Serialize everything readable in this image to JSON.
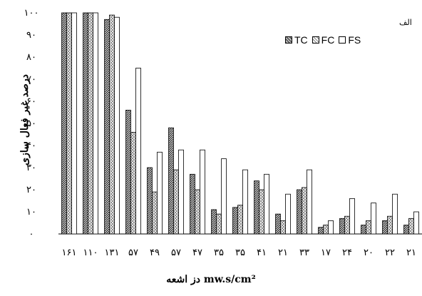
{
  "chart_data": {
    "type": "bar",
    "panel_tag": "الف",
    "xlabel": "دز اشعه mw.s/cm²",
    "ylabel": "درصد غیر فعال سازی",
    "ylim": [
      0,
      100
    ],
    "y_ticks": [
      "۰",
      "۱۰",
      "۲۰",
      "۳۰",
      "۴۰",
      "۵۰",
      "۶۰",
      "۷۰",
      "۸۰",
      "۹۰",
      "۱۰۰"
    ],
    "categories": [
      "۱۶۱",
      "۱۱۰",
      "۱۳۱",
      "۵۷",
      "۴۹",
      "۵۷",
      "۴۷",
      "۳۵",
      "۳۵",
      "۴۱",
      "۲۱",
      "۳۳",
      "۱۷",
      "۲۴",
      "۲۰",
      "۲۲",
      "۲۱"
    ],
    "series": [
      {
        "name": "TC",
        "pattern": "dense-hatch",
        "values": [
          100,
          100,
          97,
          56,
          30,
          48,
          27,
          11,
          12,
          24,
          9,
          20,
          3,
          7,
          4,
          6,
          4
        ]
      },
      {
        "name": "FC",
        "pattern": "cross-hatch",
        "values": [
          100,
          100,
          99,
          46,
          19,
          29,
          20,
          9,
          13,
          20,
          6,
          21,
          4,
          8,
          6,
          8,
          7
        ]
      },
      {
        "name": "FS",
        "pattern": "white",
        "values": [
          100,
          100,
          98,
          75,
          37,
          38,
          38,
          34,
          29,
          27,
          18,
          29,
          6,
          16,
          14,
          18,
          10
        ]
      }
    ],
    "legend": {
      "order": [
        "TC",
        "FC",
        "FS"
      ],
      "placement": "top-right"
    },
    "grid": false
  }
}
